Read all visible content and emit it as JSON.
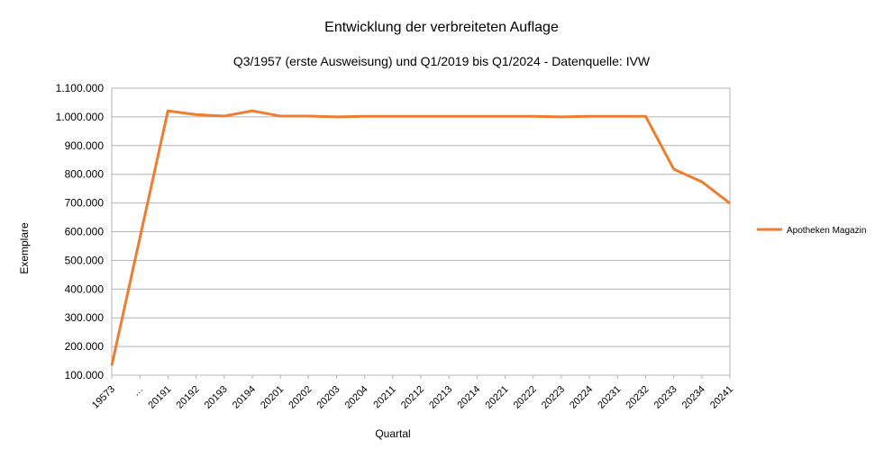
{
  "chart_data": {
    "type": "line",
    "title": "Entwicklung der verbreiteten Auflage",
    "subtitle": "Q3/1957 (erste Ausweisung) und Q1/2019 bis Q1/2024 - Datenquelle: IVW",
    "x_label": "Quartal",
    "y_label": "Exemplare",
    "categories": [
      "19573",
      "…",
      "20191",
      "20192",
      "20193",
      "20194",
      "20201",
      "20202",
      "20203",
      "20204",
      "20211",
      "20212",
      "20213",
      "20214",
      "20221",
      "20222",
      "20223",
      "20224",
      "20231",
      "20232",
      "20233",
      "20234",
      "20241"
    ],
    "series": [
      {
        "name": "Apotheken Magazin",
        "color": "#ed7d31",
        "values": [
          134000,
          578000,
          1021000,
          1008000,
          1003000,
          1021000,
          1003000,
          1003000,
          1000000,
          1002000,
          1002000,
          1002000,
          1002000,
          1002000,
          1002000,
          1002000,
          1000000,
          1002000,
          1002000,
          1002000,
          818000,
          774000,
          699000
        ]
      }
    ],
    "ylim": [
      100000,
      1100000
    ],
    "yticks": [
      {
        "value": 100000,
        "label": "100.000"
      },
      {
        "value": 200000,
        "label": "200.000"
      },
      {
        "value": 300000,
        "label": "300.000"
      },
      {
        "value": 400000,
        "label": "400.000"
      },
      {
        "value": 500000,
        "label": "500.000"
      },
      {
        "value": 600000,
        "label": "600.000"
      },
      {
        "value": 700000,
        "label": "700.000"
      },
      {
        "value": 800000,
        "label": "800.000"
      },
      {
        "value": 900000,
        "label": "900.000"
      },
      {
        "value": 1000000,
        "label": "1.000.000"
      },
      {
        "value": 1100000,
        "label": "1.100.000"
      }
    ],
    "grid": true,
    "legend": "right"
  }
}
